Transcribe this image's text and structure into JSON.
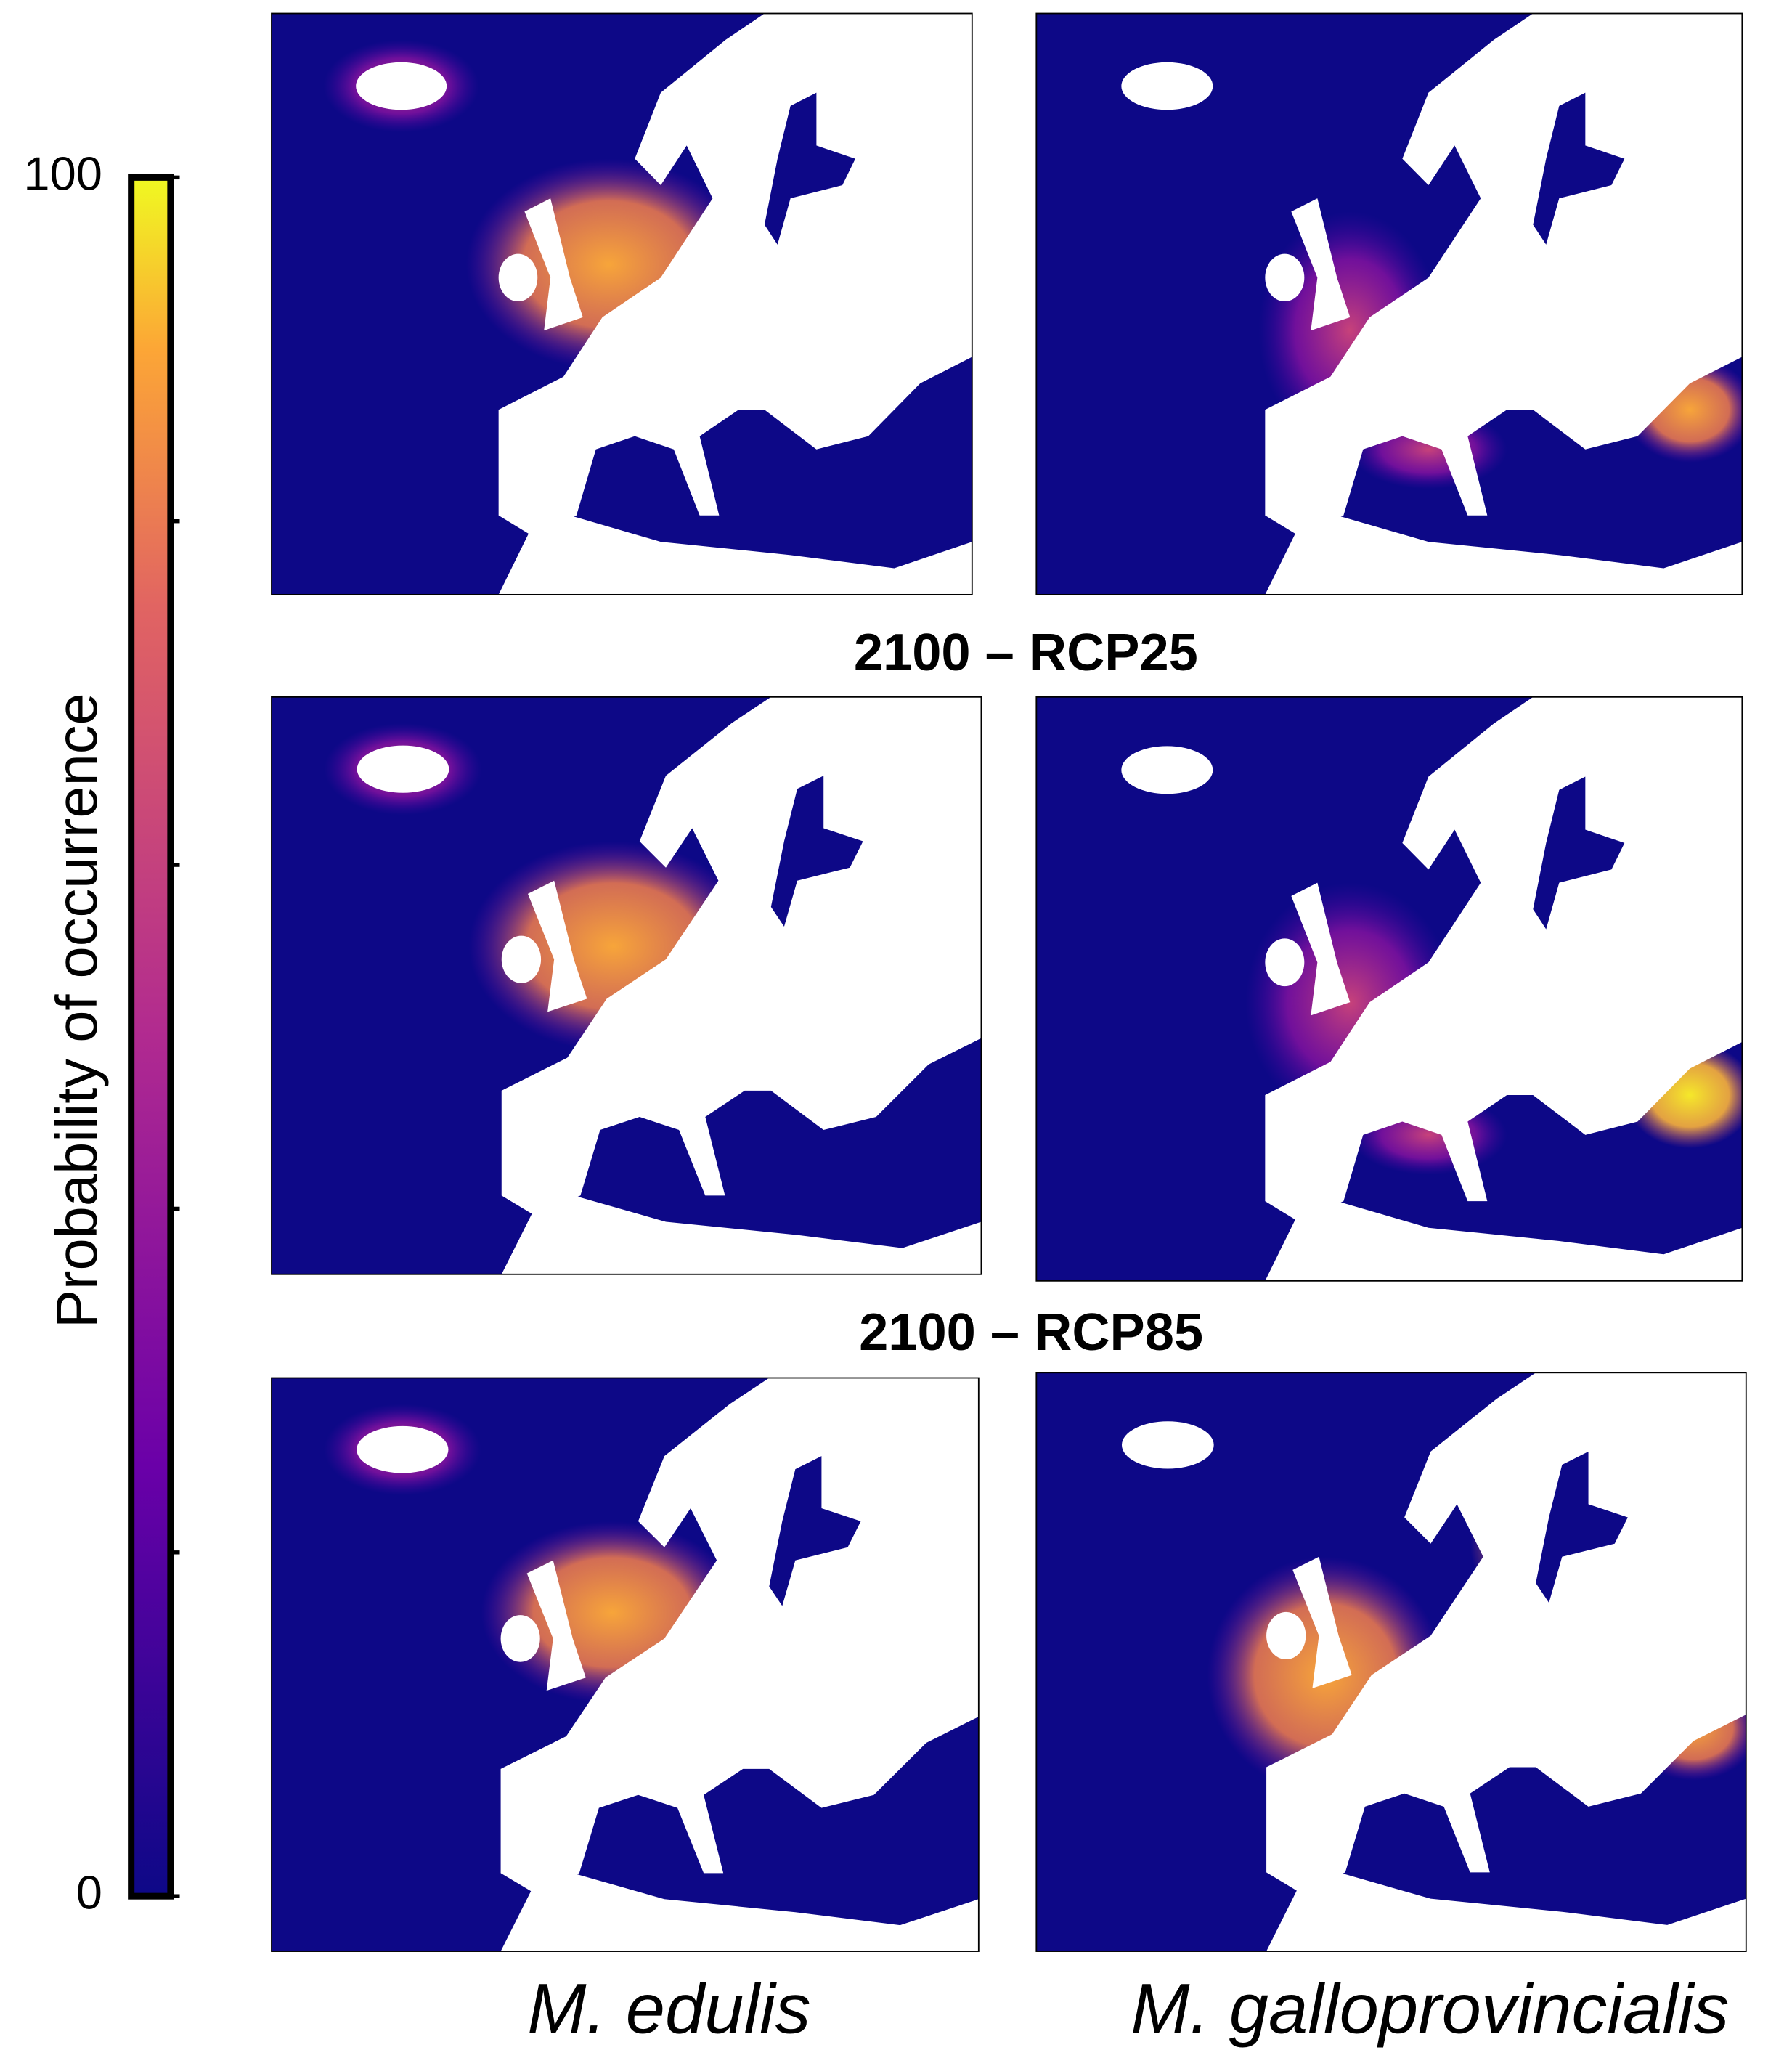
{
  "colorbar": {
    "label": "Probability of occurrence",
    "lim": [
      0,
      100
    ],
    "ticks": [
      0,
      100
    ],
    "minor_ticks": [
      20,
      40,
      60,
      80
    ]
  },
  "row_titles": [
    "2100 – RCP25",
    "2100 – RCP85"
  ],
  "column_labels": [
    "M. edulis",
    "M. galloprovincialis"
  ]
}
